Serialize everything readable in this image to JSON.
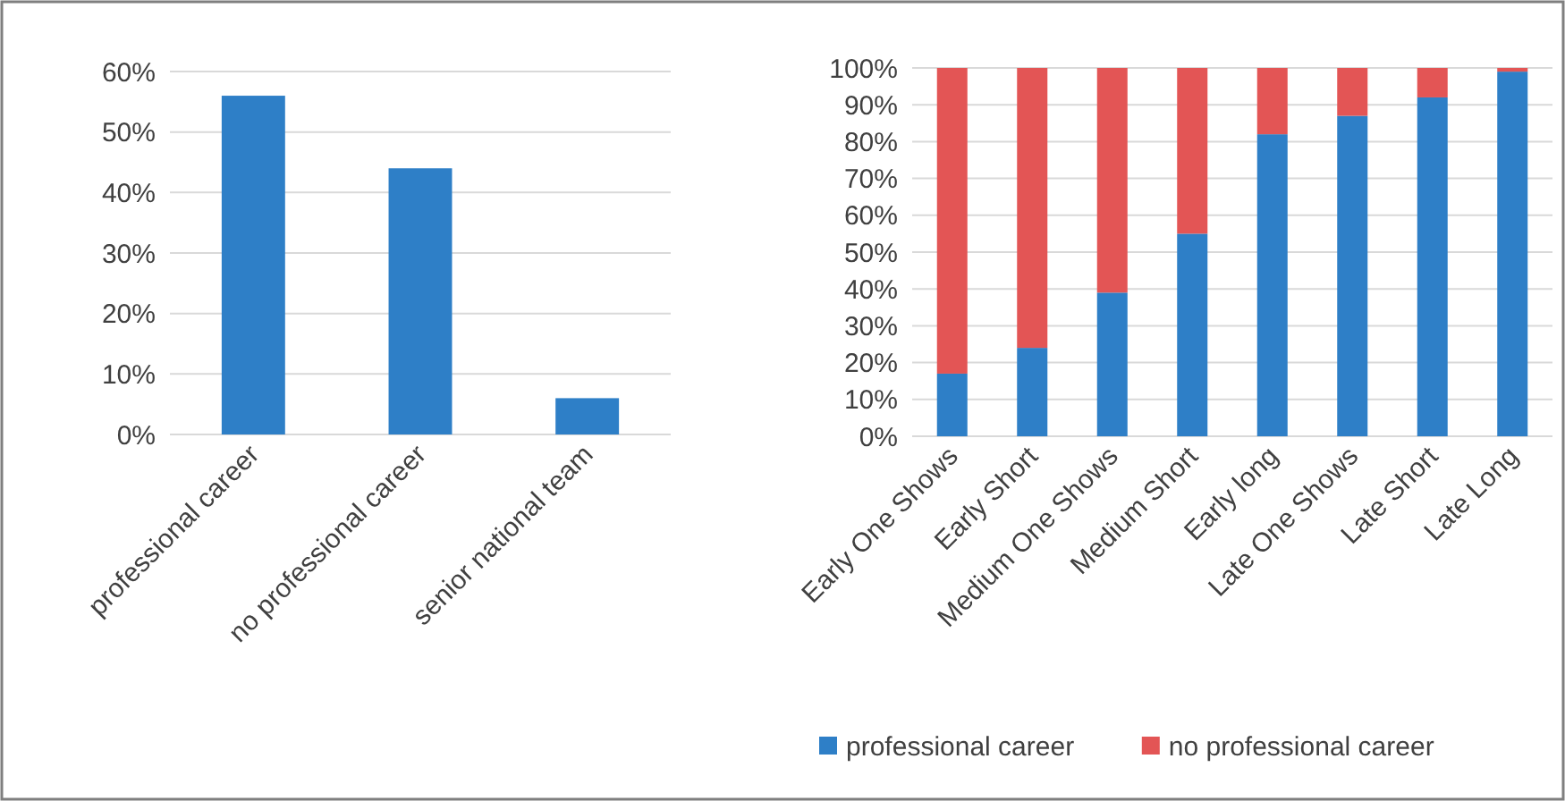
{
  "chart_data": [
    {
      "type": "bar",
      "categories": [
        "professional career",
        "no professional career",
        "senior national team"
      ],
      "values": [
        56,
        44,
        6
      ],
      "color": "#2e7fc7",
      "ylim": [
        0,
        60
      ],
      "yticks": [
        {
          "value": 0,
          "label": "0%"
        },
        {
          "value": 10,
          "label": "10%"
        },
        {
          "value": 20,
          "label": "20%"
        },
        {
          "value": 30,
          "label": "30%"
        },
        {
          "value": 40,
          "label": "40%"
        },
        {
          "value": 50,
          "label": "50%"
        },
        {
          "value": 60,
          "label": "60%"
        }
      ],
      "grid": "y",
      "legend": false
    },
    {
      "type": "bar",
      "stacked": true,
      "categories": [
        "Early One Shows",
        "Early Short",
        "Medium One Shows",
        "Medium Short",
        "Early long",
        "Late One Shows",
        "Late Short",
        "Late Long"
      ],
      "series": [
        {
          "name": "professional career",
          "color": "#2e7fc7",
          "values": [
            17,
            24,
            39,
            55,
            82,
            87,
            92,
            99
          ]
        },
        {
          "name": "no professional career",
          "color": "#e35555",
          "values": [
            83,
            76,
            61,
            45,
            18,
            13,
            8,
            1
          ]
        }
      ],
      "ylim": [
        0,
        100
      ],
      "yticks": [
        {
          "value": 0,
          "label": "0%"
        },
        {
          "value": 10,
          "label": "10%"
        },
        {
          "value": 20,
          "label": "20%"
        },
        {
          "value": 30,
          "label": "30%"
        },
        {
          "value": 40,
          "label": "40%"
        },
        {
          "value": 50,
          "label": "50%"
        },
        {
          "value": 60,
          "label": "60%"
        },
        {
          "value": 70,
          "label": "70%"
        },
        {
          "value": 80,
          "label": "80%"
        },
        {
          "value": 90,
          "label": "90%"
        },
        {
          "value": 100,
          "label": "100%"
        }
      ],
      "grid": "y",
      "legend": "bottom"
    }
  ]
}
